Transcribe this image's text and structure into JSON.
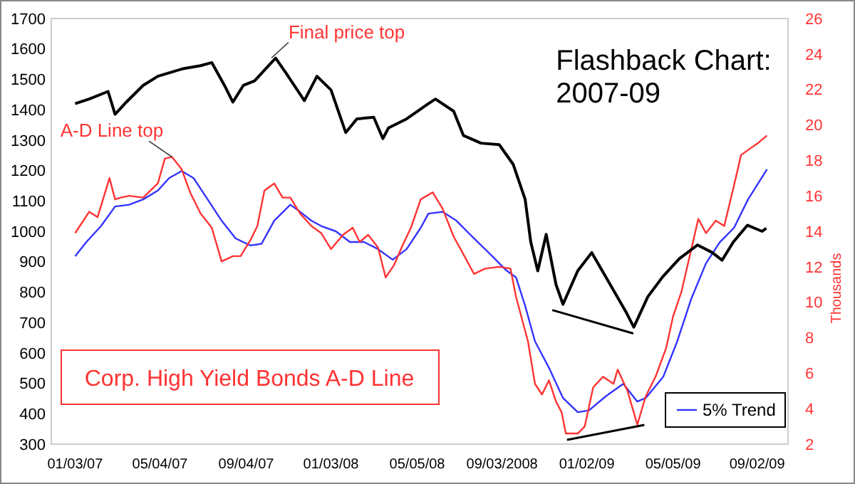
{
  "chart_data": {
    "type": "line",
    "title": "Flashback Chart: 2007-09",
    "y2label": "Thousands",
    "xlim": [
      "2006-11-30",
      "2009-10-16"
    ],
    "xticks": [
      {
        "value": "2007-01-03",
        "label": "01/03/07"
      },
      {
        "value": "2007-05-04",
        "label": "05/04/07"
      },
      {
        "value": "2007-09-04",
        "label": "09/04/07"
      },
      {
        "value": "2008-01-03",
        "label": "01/03/08"
      },
      {
        "value": "2008-05-05",
        "label": "05/05/08"
      },
      {
        "value": "2008-09-03",
        "label": "09/03/2008"
      },
      {
        "value": "2009-01-02",
        "label": "01/02/09"
      },
      {
        "value": "2009-05-05",
        "label": "05/05/09"
      },
      {
        "value": "2009-09-02",
        "label": "09/02/09"
      }
    ],
    "ylim": [
      300,
      1700
    ],
    "yticks": [
      300,
      400,
      500,
      600,
      700,
      800,
      900,
      1000,
      1100,
      1200,
      1300,
      1400,
      1500,
      1600,
      1700
    ],
    "y2lim": [
      2,
      26
    ],
    "y2ticks": [
      2,
      4,
      6,
      8,
      10,
      12,
      14,
      16,
      18,
      20,
      22,
      24,
      26
    ],
    "grid": false,
    "legend": "bottom right",
    "marker": "none",
    "line_style": "solid",
    "series": [
      {
        "color": "#000000",
        "x": [
          "2007-01-03",
          "2007-01-23",
          "2007-02-19",
          "2007-03-01",
          "2007-03-17",
          "2007-04-10",
          "2007-05-01",
          "2007-06-06",
          "2007-07-01",
          "2007-07-17",
          "2007-08-04",
          "2007-08-16",
          "2007-08-31",
          "2007-09-16",
          "2007-09-30",
          "2007-10-16",
          "2007-10-31",
          "2007-11-26",
          "2007-12-14",
          "2008-01-03",
          "2008-01-24",
          "2008-02-09",
          "2008-03-04",
          "2008-03-17",
          "2008-03-25",
          "2008-04-20",
          "2008-05-21",
          "2008-05-31",
          "2008-06-26",
          "2008-07-10",
          "2008-08-04",
          "2008-08-30",
          "2008-09-19",
          "2008-10-06",
          "2008-10-14",
          "2008-10-24",
          "2008-11-05",
          "2008-11-19",
          "2008-11-29",
          "2008-12-20",
          "2009-01-09",
          "2009-01-29",
          "2009-02-28",
          "2009-03-10",
          "2009-03-30",
          "2009-04-20",
          "2009-05-14",
          "2009-06-09",
          "2009-06-30",
          "2009-07-14",
          "2009-07-30",
          "2009-08-19",
          "2009-09-09",
          "2009-09-15"
        ],
        "values": [
          1420,
          1435,
          1460,
          1385,
          1425,
          1480,
          1510,
          1535,
          1545,
          1555,
          1480,
          1425,
          1480,
          1495,
          1530,
          1570,
          1520,
          1430,
          1510,
          1465,
          1325,
          1370,
          1375,
          1305,
          1340,
          1370,
          1420,
          1435,
          1395,
          1315,
          1290,
          1285,
          1220,
          1105,
          965,
          870,
          990,
          825,
          760,
          870,
          930,
          850,
          730,
          685,
          785,
          850,
          910,
          955,
          930,
          905,
          965,
          1020,
          1000,
          1010
        ]
      },
      {
        "name": "Corp. High Yield Bonds A-D Line",
        "color": "#ff3333",
        "axis": "y2",
        "x": [
          "2007-01-03",
          "2007-01-23",
          "2007-02-04",
          "2007-02-21",
          "2007-03-01",
          "2007-03-09",
          "2007-03-21",
          "2007-04-10",
          "2007-05-01",
          "2007-05-11",
          "2007-05-21",
          "2007-06-04",
          "2007-06-16",
          "2007-07-01",
          "2007-07-17",
          "2007-07-31",
          "2007-08-16",
          "2007-08-27",
          "2007-09-10",
          "2007-09-20",
          "2007-09-30",
          "2007-10-14",
          "2007-10-26",
          "2007-11-06",
          "2007-11-20",
          "2007-12-06",
          "2007-12-20",
          "2008-01-03",
          "2008-01-20",
          "2008-02-03",
          "2008-02-13",
          "2008-02-25",
          "2008-03-10",
          "2008-03-21",
          "2008-04-02",
          "2008-04-14",
          "2008-04-26",
          "2008-05-10",
          "2008-05-27",
          "2008-06-10",
          "2008-06-26",
          "2008-07-10",
          "2008-07-25",
          "2008-08-10",
          "2008-08-30",
          "2008-09-15",
          "2008-09-23",
          "2008-10-10",
          "2008-10-20",
          "2008-10-30",
          "2008-11-09",
          "2008-11-19",
          "2008-11-27",
          "2008-12-03",
          "2008-12-20",
          "2008-12-30",
          "2009-01-11",
          "2009-01-25",
          "2009-02-09",
          "2009-02-15",
          "2009-03-01",
          "2009-03-15",
          "2009-03-27",
          "2009-04-10",
          "2009-04-25",
          "2009-05-05",
          "2009-05-17",
          "2009-06-10",
          "2009-06-21",
          "2009-07-05",
          "2009-07-17",
          "2009-07-31",
          "2009-08-10",
          "2009-08-24",
          "2009-09-04",
          "2009-09-16"
        ],
        "values": [
          13.9,
          15.1,
          14.8,
          17.0,
          15.8,
          15.9,
          16.0,
          15.9,
          16.7,
          18.1,
          18.2,
          17.5,
          16.2,
          15.0,
          14.2,
          12.3,
          12.6,
          12.6,
          13.5,
          14.3,
          16.3,
          16.7,
          15.9,
          15.9,
          15.0,
          14.3,
          13.9,
          13.0,
          13.8,
          14.2,
          13.4,
          13.8,
          13.1,
          11.4,
          12.1,
          13.2,
          14.2,
          15.8,
          16.2,
          15.3,
          13.7,
          12.7,
          11.6,
          11.9,
          12.0,
          11.9,
          10.3,
          7.8,
          5.4,
          4.8,
          5.6,
          4.4,
          3.8,
          2.6,
          2.6,
          3.0,
          5.2,
          5.8,
          5.4,
          6.2,
          5.0,
          3.1,
          4.7,
          5.8,
          7.4,
          9.2,
          10.6,
          14.7,
          13.9,
          14.6,
          14.3,
          16.6,
          18.3,
          18.7,
          19.0,
          19.4
        ]
      },
      {
        "name": "5% Trend",
        "color": "#3333ff",
        "axis": "y2",
        "x": [
          "2007-01-03",
          "2007-01-19",
          "2007-02-09",
          "2007-03-01",
          "2007-03-21",
          "2007-04-10",
          "2007-05-01",
          "2007-05-17",
          "2007-06-04",
          "2007-06-21",
          "2007-07-11",
          "2007-07-31",
          "2007-08-20",
          "2007-09-10",
          "2007-09-26",
          "2007-10-14",
          "2007-11-06",
          "2007-11-20",
          "2007-12-06",
          "2007-12-20",
          "2008-01-10",
          "2008-01-30",
          "2008-02-19",
          "2008-03-10",
          "2008-03-31",
          "2008-04-20",
          "2008-05-10",
          "2008-05-21",
          "2008-06-10",
          "2008-06-30",
          "2008-07-20",
          "2008-08-20",
          "2008-09-09",
          "2008-09-23",
          "2008-10-06",
          "2008-10-20",
          "2008-11-09",
          "2008-11-29",
          "2008-12-20",
          "2009-01-05",
          "2009-01-29",
          "2009-02-23",
          "2009-03-15",
          "2009-03-27",
          "2009-04-21",
          "2009-05-11",
          "2009-05-31",
          "2009-06-21",
          "2009-07-11",
          "2009-07-31",
          "2009-08-20",
          "2009-09-16"
        ],
        "values": [
          12.6,
          13.4,
          14.3,
          15.4,
          15.5,
          15.8,
          16.3,
          17.0,
          17.4,
          17.0,
          15.8,
          14.6,
          13.6,
          13.2,
          13.3,
          14.6,
          15.5,
          15.1,
          14.6,
          14.3,
          14.0,
          13.4,
          13.4,
          13.0,
          12.4,
          13.0,
          14.2,
          15.0,
          15.1,
          14.6,
          13.8,
          12.6,
          11.8,
          11.4,
          9.8,
          7.8,
          6.3,
          4.6,
          3.8,
          3.9,
          4.7,
          5.4,
          4.4,
          4.6,
          5.8,
          7.8,
          10.2,
          12.2,
          13.4,
          14.2,
          15.8,
          17.5
        ]
      }
    ],
    "annotations": [
      {
        "text": "Final price top",
        "x": "2007-10-10",
        "y": 1570
      },
      {
        "text": "A-D Line top",
        "x": "2007-05-21",
        "y": 1245
      }
    ]
  }
}
